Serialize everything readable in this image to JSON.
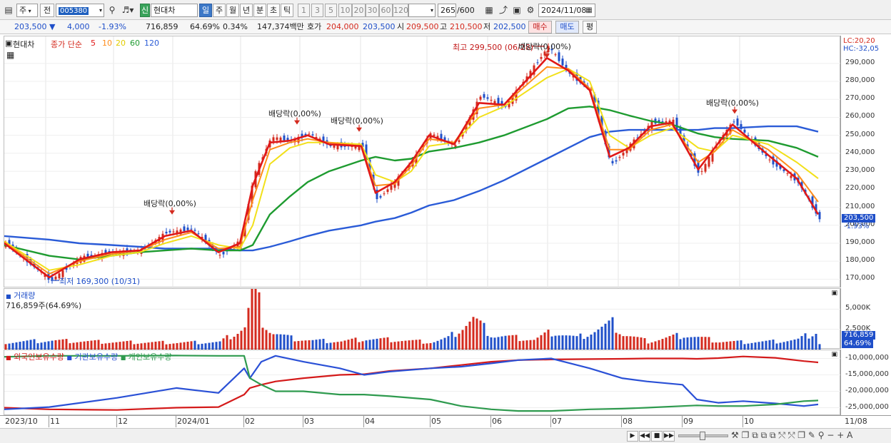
{
  "toolbar": {
    "menu_glyph": "▤",
    "mode_select": "주",
    "prev_label": "전",
    "code": "005380",
    "stock_badge": "신",
    "stock_name": "현대차",
    "periods": [
      "일",
      "주",
      "월",
      "년",
      "분",
      "초",
      "틱"
    ],
    "active_period": "일",
    "intervals": [
      "1",
      "3",
      "5",
      "10",
      "20",
      "30",
      "60",
      "120"
    ],
    "count": "265",
    "count_max": "/600",
    "date": "2024/11/08"
  },
  "quote": {
    "price": "203,500 ▼",
    "change": "4,000",
    "change_pct": "-1.93%",
    "volume": "716,859",
    "volume_pct": "64.69%",
    "turnover": "0.34%",
    "value": "147,374백만",
    "ask_label": "호가",
    "ask": "204,000",
    "bid": "203,500",
    "open_label": "시",
    "open": "209,500",
    "high_label": "고",
    "high": "210,500",
    "low_label": "저",
    "low": "202,500",
    "buy_button": "매수",
    "sell_button": "매도",
    "eval_button": "평"
  },
  "price_panel": {
    "legend_icon": "▣",
    "stock": "현대차",
    "ma_prefix": "종가 단순",
    "ma_periods": [
      "5",
      "10",
      "20",
      "60",
      "120"
    ],
    "lc": "LC:20,20",
    "hc": "HC:-32,05",
    "high_label": "최고 299,500 (06/28)",
    "low_label": "최저 169,300 (10/31)",
    "dividend_label": "배당락(0,00%)",
    "last_price": "203,500",
    "last_pct": "-1.93%"
  },
  "volume_panel": {
    "title": "거래량",
    "value": "716,859주(64.69%)",
    "last": "716,859",
    "last_pct": "64.69%"
  },
  "holdings_panel": {
    "series": [
      "외국인보유수량",
      "기관보유수량",
      "개인보유수량"
    ]
  },
  "colors": {
    "up": "#d42a1e",
    "down": "#1f4fc9",
    "ma5": "#e01818",
    "ma10": "#ff8c1a",
    "ma20": "#f2e01a",
    "ma60": "#1e9b30",
    "ma120": "#2a5bd7",
    "foreign": "#d41a1a",
    "institution": "#2a50d6",
    "individual": "#2e9a4e"
  },
  "chart_data": [
    {
      "type": "candlestick",
      "title": "현대차",
      "x_range": [
        "2023/10",
        "2024/11/08"
      ],
      "ylim": [
        165000,
        305000
      ],
      "y_ticks": [
        170000,
        180000,
        190000,
        200000,
        210000,
        220000,
        230000,
        240000,
        250000,
        260000,
        270000,
        280000,
        290000
      ],
      "y_tick_labels": [
        "170,000",
        "180,000",
        "190,000",
        "200,000",
        "210,000",
        "220,000",
        "230,000",
        "240,000",
        "250,000",
        "260,000",
        "270,000",
        "280,000",
        "290,000"
      ],
      "x_ticks": [
        "2023/10",
        "11",
        "12",
        "2024/01",
        "02",
        "03",
        "04",
        "05",
        "06",
        "07",
        "08",
        "09",
        "10",
        "11/08"
      ],
      "x_tick_index": [
        0,
        63,
        158,
        241,
        336,
        419,
        504,
        597,
        682,
        766,
        865,
        950,
        1035,
        1177
      ],
      "dates": [
        "2023/10/04",
        "2023/10/31",
        "2023/11/15",
        "2023/11/30",
        "2023/12/15",
        "2023/12/28",
        "2024/01/10",
        "2024/01/25",
        "2024/02/02",
        "2024/02/08",
        "2024/02/16",
        "2024/02/26",
        "2024/03/05",
        "2024/03/15",
        "2024/03/27",
        "2024/04/05",
        "2024/04/17",
        "2024/04/29",
        "2024/05/10",
        "2024/05/24",
        "2024/06/05",
        "2024/06/14",
        "2024/06/28",
        "2024/07/12",
        "2024/07/26",
        "2024/08/05",
        "2024/08/13",
        "2024/08/27",
        "2024/09/06",
        "2024/09/20",
        "2024/09/30",
        "2024/10/10",
        "2024/10/22",
        "2024/11/01",
        "2024/11/08"
      ],
      "x_pos": [
        0,
        63,
        105,
        150,
        190,
        225,
        262,
        300,
        330,
        348,
        372,
        400,
        425,
        455,
        500,
        520,
        547,
        570,
        595,
        630,
        665,
        700,
        760,
        790,
        820,
        848,
        875,
        905,
        935,
        972,
        995,
        1020,
        1070,
        1110,
        1140
      ],
      "close": [
        190000,
        169300,
        182000,
        185000,
        186000,
        196000,
        198000,
        183000,
        192000,
        228000,
        249000,
        247000,
        251000,
        244000,
        244000,
        214000,
        225000,
        236000,
        251000,
        244000,
        272000,
        266000,
        299500,
        284000,
        275000,
        233000,
        245000,
        257000,
        258000,
        228000,
        245000,
        258000,
        236000,
        224000,
        203500
      ],
      "series": [
        {
          "name": "5",
          "values": [
            190000,
            171000,
            181000,
            185000,
            186000,
            194000,
            197000,
            185000,
            190000,
            222000,
            246000,
            247000,
            250000,
            245000,
            244000,
            218000,
            224000,
            235000,
            250000,
            245000,
            268000,
            267000,
            293000,
            286000,
            275000,
            238000,
            243000,
            255000,
            257000,
            231000,
            243000,
            256000,
            239000,
            226000,
            206000
          ]
        },
        {
          "name": "10",
          "values": [
            190500,
            173000,
            180000,
            184000,
            186000,
            192000,
            196000,
            187000,
            188000,
            214000,
            242000,
            246000,
            248000,
            246000,
            244000,
            222000,
            223000,
            233000,
            248000,
            246000,
            265000,
            267000,
            288000,
            287000,
            276000,
            242000,
            242000,
            253000,
            256000,
            235000,
            241000,
            253000,
            242000,
            229000,
            213000
          ]
        },
        {
          "name": "20",
          "values": [
            191000,
            175000,
            178000,
            183000,
            185000,
            190000,
            194000,
            189000,
            187000,
            200000,
            234000,
            243000,
            246000,
            246000,
            245000,
            228000,
            224000,
            230000,
            244000,
            246000,
            260000,
            266000,
            282000,
            287000,
            280000,
            250000,
            243000,
            250000,
            254000,
            243000,
            241000,
            250000,
            245000,
            235000,
            226000
          ]
        },
        {
          "name": "60",
          "values": [
            189000,
            183000,
            181000,
            183000,
            185000,
            186000,
            187000,
            186000,
            186000,
            189000,
            206000,
            216000,
            224000,
            230000,
            236000,
            238000,
            236000,
            237000,
            241000,
            243000,
            246000,
            250000,
            259000,
            265000,
            266000,
            264000,
            261000,
            258000,
            256000,
            251000,
            249000,
            248000,
            247000,
            243000,
            238000
          ]
        },
        {
          "name": "120",
          "values": [
            194000,
            192000,
            190000,
            189000,
            188000,
            187000,
            187000,
            187000,
            186000,
            186000,
            188000,
            191000,
            194000,
            197000,
            200000,
            202000,
            204000,
            207000,
            211000,
            214000,
            219000,
            225000,
            237000,
            243000,
            249000,
            252000,
            253000,
            253000,
            253000,
            253000,
            254000,
            254000,
            255000,
            255000,
            252000
          ]
        }
      ],
      "annotations": [
        {
          "text": "최고 299,500 (06/28)",
          "date": "2024/06/28",
          "y": 299500
        },
        {
          "text": "최저 169,300 (10/31)",
          "date": "2023/10/31",
          "y": 169300
        },
        {
          "text": "배당락(0,00%)",
          "date": "2023/12/28",
          "y": 202000
        },
        {
          "text": "배당락(0,00%)",
          "date": "2024/03/05",
          "y": 252000
        },
        {
          "text": "배당락(0,00%)",
          "date": "2024/03/27",
          "y": 248000
        },
        {
          "text": "배당락(0,00%)",
          "date": "2024/06/27",
          "y": 289000
        },
        {
          "text": "배당락(0,00%)",
          "date": "2024/09/27",
          "y": 258000
        }
      ]
    },
    {
      "type": "bar",
      "title": "거래량",
      "ylim": [
        0,
        7500
      ],
      "y_ticks": [
        2500,
        5000
      ],
      "y_tick_labels": [
        "2,500K",
        "5,000K"
      ],
      "x_pos": [
        0,
        63,
        158,
        241,
        300,
        336,
        344,
        352,
        360,
        372,
        400,
        430,
        470,
        504,
        540,
        597,
        620,
        655,
        682,
        700,
        740,
        766,
        800,
        850,
        865,
        900,
        950,
        1000,
        1035,
        1080,
        1110,
        1137,
        1140
      ],
      "values": [
        900,
        1100,
        900,
        850,
        900,
        2800,
        6900,
        6900,
        3600,
        2100,
        1400,
        1100,
        1000,
        1300,
        1200,
        900,
        1400,
        3800,
        1700,
        1600,
        1200,
        2200,
        1400,
        3200,
        1900,
        1000,
        1800,
        1000,
        900,
        1000,
        1200,
        2300,
        717
      ]
    },
    {
      "type": "line",
      "ylim": [
        -27500,
        -7500
      ],
      "y_ticks": [
        -10000,
        -15000,
        -20000,
        -25000
      ],
      "y_tick_labels": [
        "-10,000,000",
        "-15,000,000",
        "-20,000,000",
        "-25,000,000"
      ],
      "x_pos": [
        0,
        63,
        158,
        241,
        300,
        336,
        344,
        360,
        380,
        419,
        470,
        504,
        540,
        597,
        640,
        682,
        720,
        766,
        820,
        865,
        900,
        950,
        970,
        1000,
        1035,
        1080,
        1120,
        1140
      ],
      "series": [
        {
          "name": "외국인보유수량",
          "values": [
            -25000,
            -25500,
            -25700,
            -25000,
            -24800,
            -21000,
            -19000,
            -18000,
            -17000,
            -16000,
            -15000,
            -14800,
            -13800,
            -13000,
            -12000,
            -11000,
            -10500,
            -10300,
            -10200,
            -10100,
            -10000,
            -10000,
            -10100,
            -9900,
            -9400,
            -9800,
            -10800,
            -11200
          ]
        },
        {
          "name": "기관보유수량",
          "values": [
            -25500,
            -24800,
            -22000,
            -19000,
            -20500,
            -13000,
            -16000,
            -11000,
            -9200,
            -11000,
            -13000,
            -15000,
            -14000,
            -13000,
            -12500,
            -11500,
            -10500,
            -10000,
            -13000,
            -16000,
            -17000,
            -18000,
            -22500,
            -23500,
            -23000,
            -23700,
            -24500,
            -24000
          ]
        },
        {
          "name": "개인보유수량",
          "values": [
            -9500,
            -9200,
            -9200,
            -9100,
            -9200,
            -9200,
            -16000,
            -18000,
            -20000,
            -20000,
            -21000,
            -21000,
            -21500,
            -22500,
            -24500,
            -25500,
            -26000,
            -26000,
            -25500,
            -25300,
            -25000,
            -24500,
            -24300,
            -24500,
            -24500,
            -24000,
            -23000,
            -22800
          ]
        }
      ]
    }
  ]
}
